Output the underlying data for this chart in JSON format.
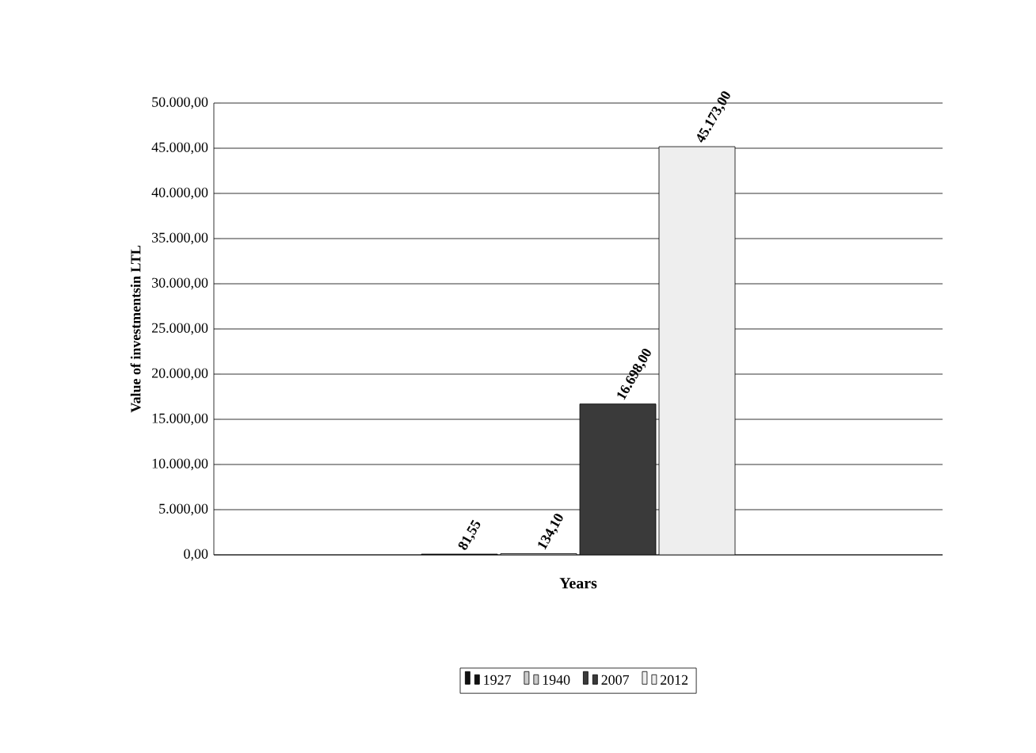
{
  "chart_data": {
    "type": "bar",
    "xlabel": "Years",
    "ylabel": "Value of investmentsin LTL",
    "categories": [
      null
    ],
    "series": [
      {
        "name": "1927",
        "color": "#111111",
        "values": [
          81.55
        ],
        "value_labels": [
          "81,55"
        ]
      },
      {
        "name": "1940",
        "color": "#cccccc",
        "values": [
          134.1
        ],
        "value_labels": [
          "134,10"
        ]
      },
      {
        "name": "2007",
        "color": "#3a3a3a",
        "values": [
          16698.0
        ],
        "value_labels": [
          "16.698,00"
        ]
      },
      {
        "name": "2012",
        "color": "#eeeeee",
        "values": [
          45173.0
        ],
        "value_labels": [
          "45.173,00"
        ]
      }
    ],
    "ylim": [
      0,
      50000
    ],
    "yticks": [
      {
        "value": 0,
        "label": "0,00"
      },
      {
        "value": 5000,
        "label": "5.000,00"
      },
      {
        "value": 10000,
        "label": "10.000,00"
      },
      {
        "value": 15000,
        "label": "15.000,00"
      },
      {
        "value": 20000,
        "label": "20.000,00"
      },
      {
        "value": 25000,
        "label": "25.000,00"
      },
      {
        "value": 30000,
        "label": "30.000,00"
      },
      {
        "value": 35000,
        "label": "35.000,00"
      },
      {
        "value": 40000,
        "label": "40.000,00"
      },
      {
        "value": 45000,
        "label": "45.000,00"
      },
      {
        "value": 50000,
        "label": "50.000,00"
      }
    ],
    "grid": "y",
    "legend": "bottom"
  }
}
